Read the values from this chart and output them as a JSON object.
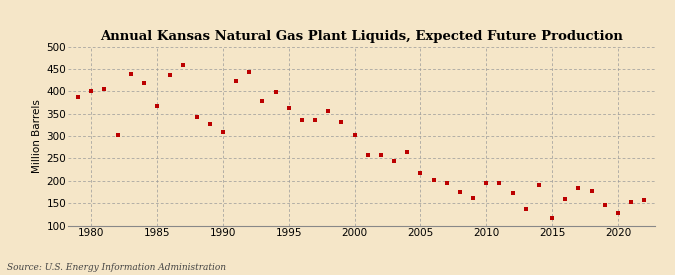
{
  "title": "Annual Kansas Natural Gas Plant Liquids, Expected Future Production",
  "ylabel": "Million Barrels",
  "source": "Source: U.S. Energy Information Administration",
  "background_color": "#f5e6c8",
  "marker_color": "#bb0000",
  "ylim": [
    100,
    500
  ],
  "yticks": [
    100,
    150,
    200,
    250,
    300,
    350,
    400,
    450,
    500
  ],
  "xlim": [
    1978.2,
    2022.8
  ],
  "xticks": [
    1980,
    1985,
    1990,
    1995,
    2000,
    2005,
    2010,
    2015,
    2020
  ],
  "years": [
    1979,
    1980,
    1981,
    1982,
    1983,
    1984,
    1985,
    1986,
    1987,
    1988,
    1989,
    1990,
    1991,
    1992,
    1993,
    1994,
    1995,
    1996,
    1997,
    1998,
    1999,
    2000,
    2001,
    2002,
    2003,
    2004,
    2005,
    2006,
    2007,
    2008,
    2009,
    2010,
    2011,
    2012,
    2013,
    2014,
    2015,
    2016,
    2017,
    2018,
    2019,
    2020,
    2021,
    2022
  ],
  "values": [
    388,
    400,
    405,
    302,
    440,
    420,
    368,
    437,
    460,
    343,
    328,
    309,
    424,
    443,
    378,
    398,
    363,
    337,
    335,
    356,
    332,
    302,
    258,
    258,
    245,
    265,
    217,
    201,
    194,
    174,
    161,
    196,
    194,
    173,
    138,
    191,
    116,
    160,
    183,
    178,
    145,
    127,
    152,
    157
  ]
}
